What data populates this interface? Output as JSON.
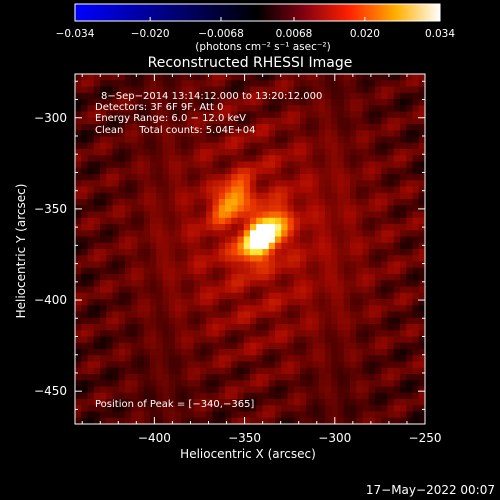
{
  "chart_data": {
    "type": "heatmap",
    "title": "Reconstructed RHESSI Image",
    "xlabel": "Heliocentric X (arcsec)",
    "ylabel": "Heliocentric Y (arcsec)",
    "xlim": [
      -444,
      -250
    ],
    "ylim": [
      -468,
      -276
    ],
    "xticks": [
      -400,
      -350,
      -300,
      -250
    ],
    "xtick_labels": [
      "−400",
      "−350",
      "−300",
      "−250"
    ],
    "yticks": [
      -300,
      -350,
      -400,
      -450
    ],
    "ytick_labels": [
      "−300",
      "−350",
      "−400",
      "−450"
    ],
    "annotations": [
      "8−Sep−2014 13:14:12.000 to 13:20:12.000",
      "Detectors: 3F 6F 9F, Att 0",
      "Energy Range: 6.0 − 12.0 keV",
      "Clean     Total counts: 5.04E+04",
      "Position of Peak = [−340,−365]"
    ],
    "peak": {
      "x": -340,
      "y": -365
    },
    "sources": [
      {
        "x": -340,
        "y": -365,
        "sx": 10,
        "sy": 6,
        "angle_deg": 50,
        "amp": 0.034
      },
      {
        "x": -357,
        "y": -345,
        "sx": 9,
        "sy": 5,
        "angle_deg": 50,
        "amp": 0.018
      }
    ],
    "colorbar": {
      "min": -0.034,
      "max": 0.034,
      "ticks": [
        -0.034,
        -0.02,
        -0.0068,
        0.0068,
        0.02,
        0.034
      ],
      "tick_labels": [
        "−0.034",
        "−0.020",
        "−0.0068",
        "0.0068",
        "0.020",
        "0.034"
      ],
      "label": "(photons cm⁻² s⁻¹ asec⁻²)",
      "colormap": [
        "#0000ff",
        "#000000",
        "#ff0000",
        "#ffff00",
        "#ffffff"
      ]
    },
    "grid": false
  },
  "timestamp": "17−May−2022 00:07"
}
